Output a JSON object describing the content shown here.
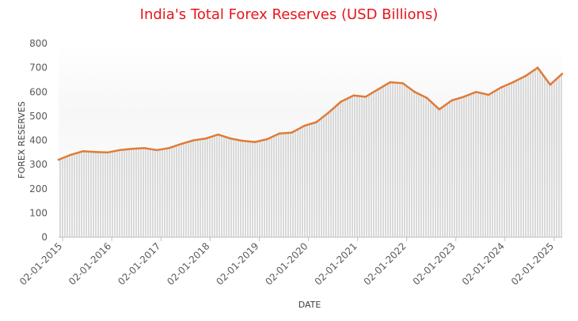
{
  "chart_data": {
    "type": "area",
    "title": "India's Total Forex Reserves (USD Billions)",
    "xlabel": "DATE",
    "ylabel": "FOREX RESERVES",
    "ylim": [
      0,
      800
    ],
    "yticks": [
      "0",
      "100",
      "200",
      "300",
      "400",
      "500",
      "600",
      "700",
      "800"
    ],
    "xticks": [
      "02-01-2015",
      "02-01-2016",
      "02-01-2017",
      "02-01-2018",
      "02-01-2019",
      "02-01-2020",
      "02-01-2021",
      "02-01-2022",
      "02-01-2023",
      "02-01-2024",
      "02-01-2025"
    ],
    "xlim": [
      "2015-01-02",
      "2025-04-01"
    ],
    "grid": false,
    "line_color": "#e07b39",
    "fill_color": "#d9d9d9",
    "title_color": "#e8141a",
    "series": [
      {
        "x": [
          "2015-01-02",
          "2015-04-01",
          "2015-07-01",
          "2015-10-01",
          "2016-01-02",
          "2016-04-01",
          "2016-07-01",
          "2016-10-01",
          "2017-01-02",
          "2017-04-01",
          "2017-07-01",
          "2017-10-01",
          "2018-01-02",
          "2018-04-01",
          "2018-07-01",
          "2018-10-01",
          "2019-01-02",
          "2019-04-01",
          "2019-07-01",
          "2019-10-01",
          "2020-01-02",
          "2020-04-01",
          "2020-07-01",
          "2020-10-01",
          "2021-01-02",
          "2021-04-01",
          "2021-07-01",
          "2021-10-01",
          "2022-01-02",
          "2022-04-01",
          "2022-07-01",
          "2022-10-01",
          "2023-01-02",
          "2023-04-01",
          "2023-07-01",
          "2023-10-01",
          "2024-01-02",
          "2024-04-01",
          "2024-07-01",
          "2024-10-01",
          "2025-01-02",
          "2025-04-01"
        ],
        "values": [
          320,
          340,
          355,
          352,
          350,
          360,
          365,
          368,
          360,
          368,
          385,
          400,
          408,
          424,
          408,
          398,
          393,
          405,
          428,
          432,
          460,
          475,
          515,
          560,
          585,
          580,
          610,
          640,
          636,
          600,
          575,
          528,
          565,
          580,
          600,
          588,
          618,
          640,
          665,
          700,
          630,
          675
        ]
      }
    ]
  }
}
